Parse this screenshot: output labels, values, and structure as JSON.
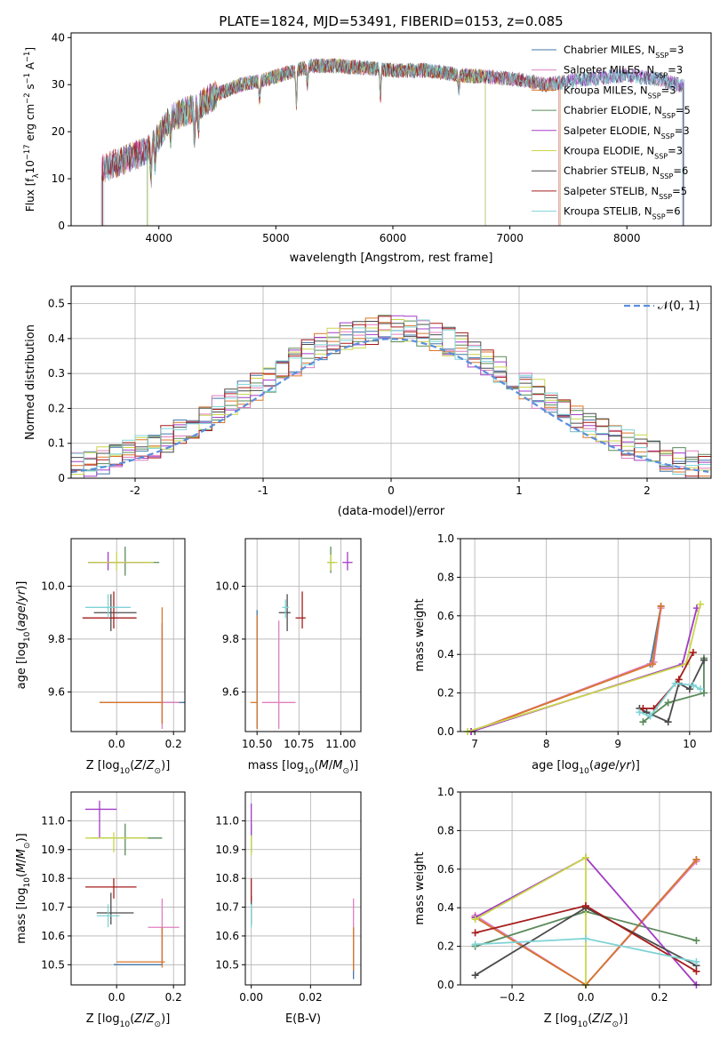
{
  "figure": {
    "title": "PLATE=1824, MJD=53491, FIBERID=0153, z=0.085"
  },
  "series_styles": [
    {
      "name": "Chabrier MILES",
      "color": "#4477aa"
    },
    {
      "name": "Salpeter MILES",
      "color": "#e07fbf"
    },
    {
      "name": "Kroupa MILES",
      "color": "#d9762a"
    },
    {
      "name": "Chabrier ELODIE",
      "color": "#5a8a5a"
    },
    {
      "name": "Salpeter ELODIE",
      "color": "#a23dc6"
    },
    {
      "name": "Kroupa ELODIE",
      "color": "#c9d64a"
    },
    {
      "name": "Chabrier STELIB",
      "color": "#4b4b4b"
    },
    {
      "name": "Salpeter STELIB",
      "color": "#a61c1c"
    },
    {
      "name": "Kroupa STELIB",
      "color": "#7fd3d6"
    }
  ],
  "chart_data": [
    {
      "id": "spectrum",
      "type": "line",
      "title": "PLATE=1824, MJD=53491, FIBERID=0153, z=0.085",
      "xlabel": "wavelength [Angstrom, rest frame]",
      "ylabel": "Flux [f_λ10^-17 erg cm^-2 s^-1 A^-1]",
      "xlim": [
        3250,
        8720
      ],
      "ylim": [
        0,
        41
      ],
      "xticks": [
        4000,
        5000,
        6000,
        7000,
        8000
      ],
      "yticks": [
        0,
        10,
        20,
        30,
        40
      ],
      "grid": false,
      "legend_position": "top-right",
      "legend": [
        "Chabrier MILES, N_SSP=3",
        "Salpeter MILES, N_SSP=3",
        "Kroupa MILES, N_SSP=3",
        "Chabrier ELODIE, N_SSP=5",
        "Salpeter ELODIE, N_SSP=3",
        "Kroupa ELODIE, N_SSP=3",
        "Chabrier STELIB, N_SSP=6",
        "Salpeter STELIB, N_SSP=5",
        "Kroupa STELIB, N_SSP=6"
      ],
      "continuum": {
        "x": [
          3500,
          3700,
          3900,
          4000,
          4100,
          4300,
          4500,
          4700,
          4900,
          5100,
          5300,
          5500,
          5800,
          6000,
          6300,
          6600,
          6900,
          7100,
          7300,
          7600,
          8000,
          8300,
          8500
        ],
        "y": [
          12,
          14,
          16,
          19,
          23,
          25,
          28,
          30,
          31,
          32.5,
          34,
          34,
          33.5,
          33,
          33,
          32,
          31.5,
          31,
          30,
          31,
          32,
          31,
          29.5
        ]
      },
      "absorption_lines": [
        {
          "x": 3934,
          "depth": 6
        },
        {
          "x": 3969,
          "depth": 5
        },
        {
          "x": 4102,
          "depth": 4
        },
        {
          "x": 4304,
          "depth": 6
        },
        {
          "x": 4340,
          "depth": 4
        },
        {
          "x": 4861,
          "depth": 4
        },
        {
          "x": 5175,
          "depth": 7
        },
        {
          "x": 5270,
          "depth": 4
        },
        {
          "x": 5893,
          "depth": 6
        },
        {
          "x": 6563,
          "depth": 3
        }
      ],
      "model_start_x": [
        3510,
        3510,
        3520,
        3900,
        3520,
        3910,
        3510,
        3520,
        3530
      ],
      "model_end_x": [
        8490,
        8480,
        7430,
        6790,
        8480,
        6790,
        8480,
        7420,
        8470
      ]
    },
    {
      "id": "residuals",
      "type": "histogram",
      "xlabel": "(data-model)/error",
      "ylabel": "Normed distribution",
      "xlim": [
        -2.5,
        2.5
      ],
      "ylim": [
        0,
        0.55
      ],
      "xticks": [
        -2,
        -1,
        0,
        1,
        2
      ],
      "yticks": [
        0.0,
        0.1,
        0.2,
        0.3,
        0.4,
        0.5
      ],
      "grid": true,
      "legend_position": "top-right",
      "reference_curve": {
        "name": "𝒩(0, 1)",
        "mean": 0,
        "sigma": 1,
        "color": "#5b8fdc"
      },
      "bin_width": 0.1
    },
    {
      "id": "age-vs-Z",
      "type": "scatter",
      "xlabel": "Z [log10(Z/Z☉)]",
      "ylabel": "age [log10(age/yr)]",
      "xlim": [
        -0.16,
        0.24
      ],
      "ylim": [
        9.45,
        10.18
      ],
      "xticks": [
        0.0,
        0.2
      ],
      "xticklabels": [
        "0.0",
        "0.2"
      ],
      "yticks": [
        9.6,
        9.8,
        10.0
      ],
      "yticklabels": [
        "9.6",
        "9.8",
        "10.0"
      ],
      "grid": true,
      "points": [
        {
          "series": 0,
          "x": 0.16,
          "y": 9.56,
          "xerr": [
            0.22,
            0.22
          ],
          "yerr": [
            0.08,
            0.3
          ]
        },
        {
          "series": 1,
          "x": 0.16,
          "y": 9.56,
          "xerr": [
            0.05,
            0.06
          ],
          "yerr": [
            0.1,
            0.3
          ]
        },
        {
          "series": 2,
          "x": 0.16,
          "y": 9.56,
          "xerr": [
            0.22,
            0.0
          ],
          "yerr": [
            0.08,
            0.36
          ]
        },
        {
          "series": 3,
          "x": 0.03,
          "y": 10.09,
          "xerr": [
            0.13,
            0.12
          ],
          "yerr": [
            0.05,
            0.06
          ]
        },
        {
          "series": 4,
          "x": -0.03,
          "y": 10.09,
          "xerr": [
            0.07,
            0.13
          ],
          "yerr": [
            0.03,
            0.04
          ]
        },
        {
          "series": 5,
          "x": 0.0,
          "y": 10.09,
          "xerr": [
            0.1,
            0.13
          ],
          "yerr": [
            0.03,
            0.04
          ]
        },
        {
          "series": 6,
          "x": -0.02,
          "y": 9.9,
          "xerr": [
            0.06,
            0.09
          ],
          "yerr": [
            0.07,
            0.07
          ]
        },
        {
          "series": 7,
          "x": -0.01,
          "y": 9.88,
          "xerr": [
            0.11,
            0.08
          ],
          "yerr": [
            0.04,
            0.1
          ]
        },
        {
          "series": 8,
          "x": -0.03,
          "y": 9.92,
          "xerr": [
            0.08,
            0.08
          ],
          "yerr": [
            0.04,
            0.05
          ]
        }
      ]
    },
    {
      "id": "age-vs-mass",
      "type": "scatter",
      "xlabel": "mass [log10(M/M☉)]",
      "ylabel": "",
      "xlim": [
        10.43,
        11.12
      ],
      "ylim": [
        9.45,
        10.18
      ],
      "xticks": [
        10.5,
        10.75,
        11.0
      ],
      "xticklabels": [
        "10.50",
        "10.75",
        "11.00"
      ],
      "yticks": [
        9.6,
        9.8,
        10.0
      ],
      "yticklabels": [
        "9.6",
        "9.8",
        "10.0"
      ],
      "grid": true,
      "points": [
        {
          "series": 0,
          "x": 10.5,
          "y": 9.56,
          "xerr": [
            0.0,
            0.0
          ],
          "yerr": [
            0.1,
            0.35
          ]
        },
        {
          "series": 1,
          "x": 10.63,
          "y": 9.56,
          "xerr": [
            0.1,
            0.1
          ],
          "yerr": [
            0.1,
            0.31
          ]
        },
        {
          "series": 2,
          "x": 10.5,
          "y": 9.56,
          "xerr": [
            0.04,
            0.0
          ],
          "yerr": [
            0.1,
            0.33
          ]
        },
        {
          "series": 3,
          "x": 10.94,
          "y": 10.09,
          "xerr": [
            0.02,
            0.02
          ],
          "yerr": [
            0.04,
            0.06
          ]
        },
        {
          "series": 4,
          "x": 11.04,
          "y": 10.09,
          "xerr": [
            0.03,
            0.03
          ],
          "yerr": [
            0.03,
            0.04
          ]
        },
        {
          "series": 5,
          "x": 10.94,
          "y": 10.09,
          "xerr": [
            0.02,
            0.04
          ],
          "yerr": [
            0.03,
            0.03
          ]
        },
        {
          "series": 6,
          "x": 10.68,
          "y": 9.9,
          "xerr": [
            0.05,
            0.02
          ],
          "yerr": [
            0.07,
            0.07
          ]
        },
        {
          "series": 7,
          "x": 10.77,
          "y": 9.88,
          "xerr": [
            0.04,
            0.02
          ],
          "yerr": [
            0.04,
            0.1
          ]
        },
        {
          "series": 8,
          "x": 10.67,
          "y": 9.92,
          "xerr": [
            0.02,
            0.02
          ],
          "yerr": [
            0.04,
            0.03
          ]
        }
      ]
    },
    {
      "id": "weight-vs-age",
      "type": "line",
      "xlabel": "age [log10(age/yr)]",
      "ylabel": "mass weight",
      "xlim": [
        6.8,
        10.3
      ],
      "ylim": [
        0.0,
        1.0
      ],
      "xticks": [
        7,
        8,
        9,
        10
      ],
      "xticklabels": [
        "7",
        "8",
        "9",
        "10"
      ],
      "yticks": [
        0.0,
        0.2,
        0.4,
        0.6,
        0.8,
        1.0
      ],
      "yticklabels": [
        "0.0",
        "0.2",
        "0.4",
        "0.6",
        "0.8",
        "1.0"
      ],
      "grid": true,
      "series": [
        {
          "series": 0,
          "x": [
            6.95,
            9.45,
            9.6
          ],
          "y": [
            0.0,
            0.35,
            0.65
          ]
        },
        {
          "series": 1,
          "x": [
            6.95,
            9.5,
            9.6
          ],
          "y": [
            0.0,
            0.36,
            0.64
          ]
        },
        {
          "series": 2,
          "x": [
            6.95,
            9.48,
            9.6
          ],
          "y": [
            0.0,
            0.35,
            0.65
          ]
        },
        {
          "series": 3,
          "x": [
            9.35,
            9.7,
            10.2,
            10.2
          ],
          "y": [
            0.05,
            0.15,
            0.2,
            0.38
          ]
        },
        {
          "series": 4,
          "x": [
            6.95,
            9.9,
            10.1
          ],
          "y": [
            0.0,
            0.35,
            0.64
          ]
        },
        {
          "series": 5,
          "x": [
            6.9,
            9.95,
            10.15
          ],
          "y": [
            0.0,
            0.35,
            0.66
          ]
        },
        {
          "series": 6,
          "x": [
            9.3,
            9.4,
            9.7,
            9.85,
            10.0,
            10.2
          ],
          "y": [
            0.12,
            0.1,
            0.05,
            0.25,
            0.22,
            0.37
          ]
        },
        {
          "series": 7,
          "x": [
            9.35,
            9.5,
            9.85,
            10.05
          ],
          "y": [
            0.12,
            0.12,
            0.27,
            0.41
          ]
        },
        {
          "series": 8,
          "x": [
            9.3,
            9.45,
            9.8,
            10.05,
            10.15
          ],
          "y": [
            0.1,
            0.08,
            0.25,
            0.24,
            0.22
          ]
        }
      ]
    },
    {
      "id": "mass-vs-Z",
      "type": "scatter",
      "xlabel": "Z [log10(Z/Z☉)]",
      "ylabel": "mass [log10(M/M☉)]",
      "xlim": [
        -0.16,
        0.24
      ],
      "ylim": [
        10.43,
        11.1
      ],
      "xticks": [
        0.0,
        0.2
      ],
      "xticklabels": [
        "0.0",
        "0.2"
      ],
      "yticks": [
        10.5,
        10.6,
        10.7,
        10.8,
        10.9,
        11.0
      ],
      "yticklabels": [
        "10.5",
        "10.6",
        "10.7",
        "10.8",
        "10.9",
        "11.0"
      ],
      "grid": true,
      "points": [
        {
          "series": 0,
          "x": 0.16,
          "y": 10.5,
          "xerr": [
            0.17,
            0.0
          ],
          "yerr": [
            0.0,
            0.13
          ]
        },
        {
          "series": 1,
          "x": 0.16,
          "y": 10.63,
          "xerr": [
            0.05,
            0.06
          ],
          "yerr": [
            0.12,
            0.1
          ]
        },
        {
          "series": 2,
          "x": 0.16,
          "y": 10.51,
          "xerr": [
            0.16,
            0.01
          ],
          "yerr": [
            0.02,
            0.12
          ]
        },
        {
          "series": 3,
          "x": 0.03,
          "y": 10.94,
          "xerr": [
            0.12,
            0.13
          ],
          "yerr": [
            0.06,
            0.05
          ]
        },
        {
          "series": 4,
          "x": -0.06,
          "y": 11.04,
          "xerr": [
            0.05,
            0.06
          ],
          "yerr": [
            0.1,
            0.03
          ]
        },
        {
          "series": 5,
          "x": -0.01,
          "y": 10.94,
          "xerr": [
            0.1,
            0.12
          ],
          "yerr": [
            0.05,
            0.02
          ]
        },
        {
          "series": 6,
          "x": -0.02,
          "y": 10.68,
          "xerr": [
            0.05,
            0.08
          ],
          "yerr": [
            0.04,
            0.07
          ]
        },
        {
          "series": 7,
          "x": -0.01,
          "y": 10.77,
          "xerr": [
            0.1,
            0.08
          ],
          "yerr": [
            0.04,
            0.03
          ]
        },
        {
          "series": 8,
          "x": -0.03,
          "y": 10.67,
          "xerr": [
            0.04,
            0.04
          ],
          "yerr": [
            0.04,
            0.04
          ]
        }
      ]
    },
    {
      "id": "mass-vs-EBV",
      "type": "scatter",
      "xlabel": "E(B-V)",
      "ylabel": "",
      "xlim": [
        -0.002,
        0.037
      ],
      "ylim": [
        10.43,
        11.1
      ],
      "xticks": [
        0.0,
        0.02
      ],
      "xticklabels": [
        "0.00",
        "0.02"
      ],
      "yticks": [
        10.5,
        10.6,
        10.7,
        10.8,
        10.9,
        11.0
      ],
      "yticklabels": [
        "10.5",
        "10.6",
        "10.7",
        "10.8",
        "10.9",
        "11.0"
      ],
      "grid": true,
      "points": [
        {
          "series": 0,
          "x": 0.0345,
          "y": 10.5,
          "xerr": [
            0,
            0
          ],
          "yerr": [
            0.05,
            0.13
          ]
        },
        {
          "series": 1,
          "x": 0.0345,
          "y": 10.63,
          "xerr": [
            0,
            0
          ],
          "yerr": [
            0.1,
            0.1
          ]
        },
        {
          "series": 2,
          "x": 0.0345,
          "y": 10.51,
          "xerr": [
            0,
            0
          ],
          "yerr": [
            0.03,
            0.12
          ]
        },
        {
          "series": 3,
          "x": 0.0,
          "y": 10.94,
          "xerr": [
            0,
            0
          ],
          "yerr": [
            0.05,
            0.05
          ]
        },
        {
          "series": 4,
          "x": 0.0,
          "y": 11.0,
          "xerr": [
            0,
            0
          ],
          "yerr": [
            0.06,
            0.06
          ]
        },
        {
          "series": 5,
          "x": 0.0,
          "y": 10.92,
          "xerr": [
            0,
            0
          ],
          "yerr": [
            0.04,
            0.03
          ]
        },
        {
          "series": 6,
          "x": 0.0,
          "y": 10.68,
          "xerr": [
            0,
            0
          ],
          "yerr": [
            0.04,
            0.06
          ]
        },
        {
          "series": 7,
          "x": 0.0,
          "y": 10.76,
          "xerr": [
            0,
            0
          ],
          "yerr": [
            0.04,
            0.04
          ]
        },
        {
          "series": 8,
          "x": 0.0,
          "y": 10.67,
          "xerr": [
            0,
            0
          ],
          "yerr": [
            0.04,
            0.04
          ]
        }
      ]
    },
    {
      "id": "weight-vs-Z",
      "type": "line",
      "xlabel": "Z [log10(Z/Z☉)]",
      "ylabel": "mass weight",
      "xlim": [
        -0.34,
        0.34
      ],
      "ylim": [
        0.0,
        1.0
      ],
      "xticks": [
        -0.2,
        0.0,
        0.2
      ],
      "xticklabels": [
        "−0.2",
        "0.0",
        "0.2"
      ],
      "yticks": [
        0.0,
        0.2,
        0.4,
        0.6,
        0.8,
        1.0
      ],
      "yticklabels": [
        "0.0",
        "0.2",
        "0.4",
        "0.6",
        "0.8",
        "1.0"
      ],
      "grid": true,
      "series": [
        {
          "series": 0,
          "x": [
            -0.3,
            0.0,
            0.3
          ],
          "y": [
            0.35,
            0.0,
            0.65
          ]
        },
        {
          "series": 1,
          "x": [
            -0.3,
            0.0,
            0.3
          ],
          "y": [
            0.36,
            0.0,
            0.64
          ]
        },
        {
          "series": 2,
          "x": [
            -0.3,
            0.0,
            0.3
          ],
          "y": [
            0.35,
            0.0,
            0.65
          ]
        },
        {
          "series": 3,
          "x": [
            -0.3,
            0.0,
            0.3
          ],
          "y": [
            0.2,
            0.38,
            0.23
          ]
        },
        {
          "series": 4,
          "x": [
            -0.3,
            0.0,
            0.3
          ],
          "y": [
            0.35,
            0.66,
            0.0
          ]
        },
        {
          "series": 5,
          "x": [
            -0.3,
            0.0,
            0.0
          ],
          "y": [
            0.34,
            0.66,
            0.0
          ]
        },
        {
          "series": 6,
          "x": [
            -0.3,
            0.0,
            0.3
          ],
          "y": [
            0.05,
            0.4,
            0.1
          ]
        },
        {
          "series": 7,
          "x": [
            -0.3,
            0.0,
            0.3
          ],
          "y": [
            0.27,
            0.41,
            0.07
          ]
        },
        {
          "series": 8,
          "x": [
            -0.3,
            0.0,
            0.3
          ],
          "y": [
            0.21,
            0.24,
            0.12
          ]
        }
      ]
    }
  ]
}
